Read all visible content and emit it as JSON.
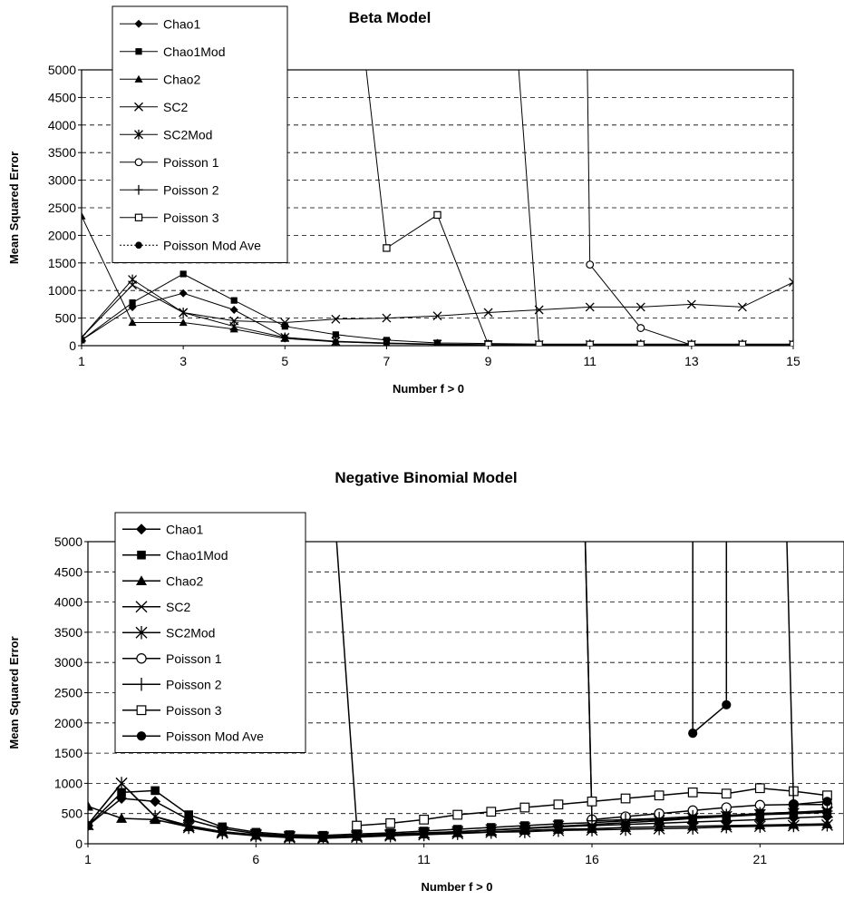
{
  "chart_data": [
    {
      "type": "line",
      "title": "Beta Model",
      "xlabel": "Number f > 0",
      "ylabel": "Mean Squared Error",
      "xlim": [
        1,
        15
      ],
      "ylim": [
        0,
        5000
      ],
      "xticks": [
        1,
        3,
        5,
        7,
        9,
        11,
        13,
        15
      ],
      "yticks": [
        0,
        500,
        1000,
        1500,
        2000,
        2500,
        3000,
        3500,
        4000,
        4500,
        5000
      ],
      "grid": "horizontal-dashed",
      "legend_position": "top-left",
      "series": [
        {
          "name": "Chao1",
          "marker": "diamond",
          "points": [
            [
              1,
              100
            ],
            [
              2,
              700
            ],
            [
              3,
              950
            ],
            [
              4,
              650
            ],
            [
              5,
              150
            ],
            [
              6,
              70
            ],
            [
              7,
              40
            ],
            [
              8,
              20
            ],
            [
              9,
              15
            ],
            [
              10,
              10
            ],
            [
              11,
              10
            ],
            [
              12,
              10
            ],
            [
              13,
              10
            ],
            [
              14,
              10
            ],
            [
              15,
              10
            ]
          ]
        },
        {
          "name": "Chao1Mod",
          "marker": "square",
          "points": [
            [
              1,
              100
            ],
            [
              2,
              780
            ],
            [
              3,
              1300
            ],
            [
              4,
              820
            ],
            [
              5,
              350
            ],
            [
              6,
              200
            ],
            [
              7,
              100
            ],
            [
              8,
              50
            ],
            [
              9,
              40
            ],
            [
              10,
              30
            ],
            [
              11,
              30
            ],
            [
              12,
              30
            ],
            [
              13,
              30
            ],
            [
              14,
              30
            ],
            [
              15,
              30
            ]
          ]
        },
        {
          "name": "Chao2",
          "marker": "triangle",
          "points": [
            [
              1,
              2350
            ],
            [
              2,
              420
            ],
            [
              3,
              420
            ],
            [
              4,
              300
            ],
            [
              5,
              130
            ],
            [
              6,
              70
            ],
            [
              7,
              40
            ],
            [
              8,
              20
            ],
            [
              9,
              15
            ],
            [
              10,
              10
            ],
            [
              11,
              10
            ],
            [
              12,
              10
            ],
            [
              13,
              10
            ],
            [
              14,
              10
            ],
            [
              15,
              10
            ]
          ]
        },
        {
          "name": "SC2",
          "marker": "x",
          "points": [
            [
              1,
              150
            ],
            [
              2,
              1100
            ],
            [
              3,
              600
            ],
            [
              4,
              450
            ],
            [
              5,
              420
            ],
            [
              6,
              480
            ],
            [
              7,
              500
            ],
            [
              8,
              540
            ],
            [
              9,
              600
            ],
            [
              10,
              650
            ],
            [
              11,
              700
            ],
            [
              12,
              700
            ],
            [
              13,
              750
            ],
            [
              14,
              700
            ],
            [
              15,
              1150
            ]
          ]
        },
        {
          "name": "SC2Mod",
          "marker": "star",
          "points": [
            [
              1,
              150
            ],
            [
              2,
              1200
            ],
            [
              3,
              600
            ],
            [
              4,
              350
            ],
            [
              5,
              150
            ],
            [
              6,
              80
            ],
            [
              7,
              50
            ],
            [
              8,
              30
            ],
            [
              9,
              20
            ],
            [
              10,
              20
            ],
            [
              11,
              20
            ],
            [
              12,
              20
            ],
            [
              13,
              20
            ],
            [
              14,
              20
            ],
            [
              15,
              20
            ]
          ]
        },
        {
          "name": "Poisson 1",
          "marker": "circle-open",
          "points": [
            [
              10.95,
              5000
            ],
            [
              11,
              1470
            ],
            [
              12,
              320
            ],
            [
              13,
              10
            ],
            [
              14,
              10
            ],
            [
              15,
              10
            ]
          ]
        },
        {
          "name": "Poisson 2",
          "marker": "plus",
          "points": [
            [
              9.6,
              5000
            ],
            [
              10,
              20
            ],
            [
              11,
              20
            ],
            [
              12,
              20
            ],
            [
              13,
              20
            ],
            [
              14,
              20
            ],
            [
              15,
              20
            ]
          ]
        },
        {
          "name": "Poisson 3",
          "marker": "square-open",
          "points": [
            [
              6.6,
              5000
            ],
            [
              7,
              1770
            ],
            [
              8,
              2370
            ],
            [
              9,
              20
            ],
            [
              10,
              20
            ],
            [
              11,
              20
            ],
            [
              12,
              20
            ],
            [
              13,
              20
            ],
            [
              14,
              20
            ],
            [
              15,
              20
            ]
          ]
        },
        {
          "name": "Poisson Mod Ave",
          "marker": "circle",
          "dotted": true,
          "points": []
        }
      ]
    },
    {
      "type": "line",
      "title": "Negative Binomial Model",
      "xlabel": "Number f > 0",
      "ylabel": "Mean Squared Error",
      "xlim": [
        1,
        23.5
      ],
      "ylim": [
        0,
        5000
      ],
      "xticks": [
        1,
        6,
        11,
        16,
        21
      ],
      "yticks": [
        0,
        500,
        1000,
        1500,
        2000,
        2500,
        3000,
        3500,
        4000,
        4500,
        5000
      ],
      "grid": "horizontal-dashed",
      "legend_position": "top-left",
      "series": [
        {
          "name": "Chao1",
          "marker": "diamond",
          "points": [
            [
              1,
              300
            ],
            [
              2,
              750
            ],
            [
              3,
              700
            ],
            [
              4,
              400
            ],
            [
              5,
              250
            ],
            [
              6,
              170
            ],
            [
              7,
              130
            ],
            [
              8,
              120
            ],
            [
              9,
              140
            ],
            [
              10,
              160
            ],
            [
              11,
              180
            ],
            [
              12,
              200
            ],
            [
              13,
              230
            ],
            [
              14,
              250
            ],
            [
              15,
              280
            ],
            [
              16,
              300
            ],
            [
              17,
              320
            ],
            [
              18,
              340
            ],
            [
              19,
              360
            ],
            [
              20,
              380
            ],
            [
              21,
              400
            ],
            [
              22,
              430
            ],
            [
              23,
              450
            ]
          ]
        },
        {
          "name": "Chao1Mod",
          "marker": "square",
          "points": [
            [
              1,
              300
            ],
            [
              2,
              850
            ],
            [
              3,
              880
            ],
            [
              4,
              480
            ],
            [
              5,
              280
            ],
            [
              6,
              190
            ],
            [
              7,
              150
            ],
            [
              8,
              140
            ],
            [
              9,
              160
            ],
            [
              10,
              180
            ],
            [
              11,
              210
            ],
            [
              12,
              240
            ],
            [
              13,
              270
            ],
            [
              14,
              300
            ],
            [
              15,
              330
            ],
            [
              16,
              350
            ],
            [
              17,
              380
            ],
            [
              18,
              400
            ],
            [
              19,
              430
            ],
            [
              20,
              460
            ],
            [
              21,
              500
            ],
            [
              22,
              520
            ],
            [
              23,
              550
            ]
          ]
        },
        {
          "name": "Chao2",
          "marker": "triangle",
          "points": [
            [
              1,
              620
            ],
            [
              2,
              420
            ],
            [
              3,
              400
            ],
            [
              4,
              280
            ],
            [
              5,
              200
            ],
            [
              6,
              140
            ],
            [
              7,
              110
            ],
            [
              8,
              100
            ],
            [
              9,
              120
            ],
            [
              10,
              140
            ],
            [
              11,
              160
            ],
            [
              12,
              180
            ],
            [
              13,
              200
            ],
            [
              14,
              220
            ],
            [
              15,
              240
            ],
            [
              16,
              250
            ],
            [
              17,
              270
            ],
            [
              18,
              280
            ],
            [
              19,
              290
            ],
            [
              20,
              300
            ],
            [
              21,
              310
            ],
            [
              22,
              320
            ],
            [
              23,
              330
            ]
          ]
        },
        {
          "name": "SC2",
          "marker": "x",
          "points": [
            [
              1,
              320
            ],
            [
              2,
              1000
            ],
            [
              3,
              450
            ],
            [
              4,
              300
            ],
            [
              5,
              200
            ],
            [
              6,
              150
            ],
            [
              7,
              120
            ],
            [
              8,
              110
            ],
            [
              9,
              130
            ],
            [
              10,
              150
            ],
            [
              11,
              180
            ],
            [
              12,
              200
            ],
            [
              13,
              230
            ],
            [
              14,
              260
            ],
            [
              15,
              290
            ],
            [
              16,
              320
            ],
            [
              17,
              350
            ],
            [
              18,
              380
            ],
            [
              19,
              420
            ],
            [
              20,
              450
            ],
            [
              21,
              480
            ],
            [
              22,
              500
            ],
            [
              23,
              520
            ]
          ]
        },
        {
          "name": "SC2Mod",
          "marker": "star",
          "points": [
            [
              1,
              320
            ],
            [
              2,
              1000
            ],
            [
              3,
              450
            ],
            [
              4,
              270
            ],
            [
              5,
              180
            ],
            [
              6,
              130
            ],
            [
              7,
              100
            ],
            [
              8,
              90
            ],
            [
              9,
              110
            ],
            [
              10,
              130
            ],
            [
              11,
              150
            ],
            [
              12,
              170
            ],
            [
              13,
              190
            ],
            [
              14,
              200
            ],
            [
              15,
              220
            ],
            [
              16,
              230
            ],
            [
              17,
              240
            ],
            [
              18,
              250
            ],
            [
              19,
              260
            ],
            [
              20,
              280
            ],
            [
              21,
              290
            ],
            [
              22,
              300
            ],
            [
              23,
              310
            ]
          ]
        },
        {
          "name": "Poisson 1",
          "marker": "circle-open",
          "points": [
            [
              15.8,
              5000
            ],
            [
              16,
              400
            ],
            [
              17,
              450
            ],
            [
              18,
              500
            ],
            [
              19,
              550
            ],
            [
              20,
              600
            ],
            [
              21,
              640
            ],
            [
              22,
              650
            ],
            [
              23,
              650
            ]
          ]
        },
        {
          "name": "Poisson 2",
          "marker": "plus",
          "points": [
            [
              15.8,
              5000
            ],
            [
              16,
              380
            ],
            [
              17,
              400
            ],
            [
              18,
              420
            ],
            [
              19,
              450
            ],
            [
              20,
              470
            ],
            [
              21,
              500
            ],
            [
              22,
              520
            ],
            [
              23,
              540
            ]
          ]
        },
        {
          "name": "Poisson 3",
          "marker": "square-open",
          "points": [
            [
              8.4,
              5000
            ],
            [
              9,
              300
            ],
            [
              10,
              340
            ],
            [
              11,
              400
            ],
            [
              12,
              480
            ],
            [
              13,
              530
            ],
            [
              14,
              600
            ],
            [
              15,
              650
            ],
            [
              16,
              700
            ],
            [
              17,
              750
            ],
            [
              18,
              800
            ],
            [
              19,
              850
            ],
            [
              20,
              830
            ],
            [
              21,
              920
            ],
            [
              22,
              870
            ],
            [
              23,
              800
            ]
          ]
        },
        {
          "name": "Poisson Mod Ave",
          "marker": "circle",
          "points": [
            [
              19,
              5000
            ],
            [
              19,
              1830
            ],
            [
              20,
              2300
            ],
            [
              20,
              5000
            ]
          ],
          "extra_points": [
            [
              21.8,
              5000
            ],
            [
              22,
              650
            ],
            [
              23,
              700
            ]
          ]
        }
      ]
    }
  ]
}
